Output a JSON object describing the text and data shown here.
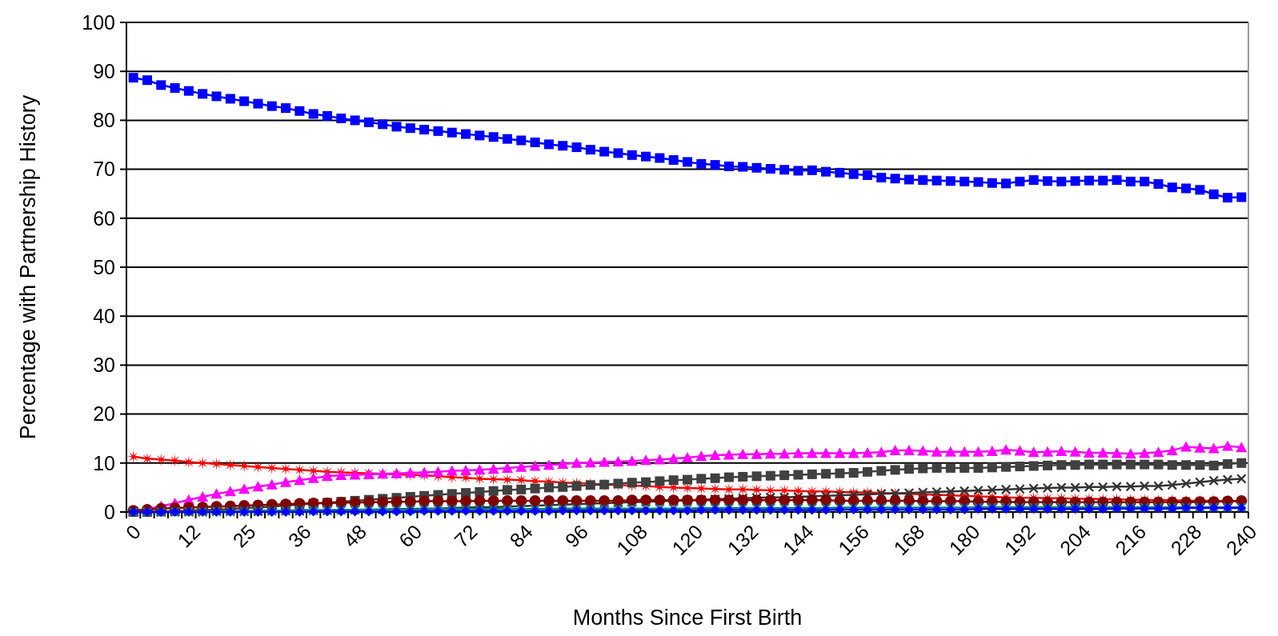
{
  "chart_data": {
    "type": "line",
    "xlabel": "Months Since First Birth",
    "ylabel": "Percentage with Partnership History",
    "categories": [
      "0",
      null,
      null,
      null,
      "12",
      null,
      null,
      null,
      "25",
      null,
      null,
      null,
      "36",
      null,
      null,
      null,
      "48",
      null,
      null,
      null,
      "60",
      null,
      null,
      null,
      "72",
      null,
      null,
      null,
      "84",
      null,
      null,
      null,
      "96",
      null,
      null,
      null,
      "108",
      null,
      null,
      null,
      "120",
      null,
      null,
      null,
      "132",
      null,
      null,
      null,
      "144",
      null,
      null,
      null,
      "156",
      null,
      null,
      null,
      "168",
      null,
      null,
      null,
      "180",
      null,
      null,
      null,
      "192",
      null,
      null,
      null,
      "204",
      null,
      null,
      null,
      "216",
      null,
      null,
      null,
      "228",
      null,
      null,
      null,
      "240"
    ],
    "ylim": [
      0,
      100
    ],
    "yticks": [
      0,
      10,
      20,
      30,
      40,
      50,
      60,
      70,
      80,
      90,
      100
    ],
    "grid": "y",
    "series": [
      {
        "color": "#0000ff",
        "marker": "square",
        "values": [
          88.7,
          88.2,
          87.2,
          86.6,
          86.0,
          85.4,
          84.9,
          84.4,
          83.9,
          83.4,
          82.9,
          82.5,
          81.9,
          81.3,
          80.9,
          80.4,
          80.0,
          79.6,
          79.2,
          78.7,
          78.4,
          78.1,
          77.8,
          77.5,
          77.2,
          76.9,
          76.6,
          76.2,
          75.9,
          75.5,
          75.1,
          74.8,
          74.5,
          74.0,
          73.6,
          73.3,
          72.9,
          72.6,
          72.3,
          71.9,
          71.5,
          71.1,
          70.9,
          70.6,
          70.5,
          70.3,
          70.1,
          69.9,
          69.7,
          69.8,
          69.5,
          69.3,
          69.0,
          68.8,
          68.3,
          68.1,
          67.9,
          67.8,
          67.7,
          67.6,
          67.5,
          67.4,
          67.2,
          67.1,
          67.5,
          67.8,
          67.6,
          67.5,
          67.6,
          67.7,
          67.7,
          67.8,
          67.5,
          67.5,
          67.0,
          66.3,
          66.1,
          65.8,
          64.9,
          64.2,
          64.3
        ]
      },
      {
        "color": "#ff0000",
        "marker": "star",
        "values": [
          11.3,
          10.9,
          10.7,
          10.5,
          10.2,
          10.0,
          9.8,
          9.6,
          9.4,
          9.2,
          9.0,
          8.8,
          8.6,
          8.4,
          8.2,
          8.1,
          8.0,
          7.9,
          7.8,
          7.7,
          7.6,
          7.5,
          7.3,
          7.1,
          7.0,
          6.8,
          6.7,
          6.6,
          6.5,
          6.3,
          6.2,
          6.0,
          5.9,
          5.8,
          5.6,
          5.5,
          5.4,
          5.3,
          5.1,
          5.0,
          4.9,
          4.8,
          4.7,
          4.6,
          4.6,
          4.5,
          4.4,
          4.4,
          4.3,
          4.2,
          4.2,
          4.1,
          4.0,
          4.0,
          3.9,
          3.8,
          3.7,
          3.6,
          3.5,
          3.4,
          3.3,
          3.2,
          3.1,
          3.0,
          2.9,
          2.9,
          2.8,
          2.8,
          2.7,
          2.7,
          2.6,
          2.6,
          2.5,
          2.5,
          2.4,
          2.4,
          2.3,
          2.3,
          2.3,
          2.2,
          2.2
        ]
      },
      {
        "color": "#ff00ff",
        "marker": "triangle",
        "values": [
          0.2,
          0.6,
          1.2,
          1.8,
          2.5,
          3.1,
          3.7,
          4.2,
          4.7,
          5.2,
          5.6,
          6.1,
          6.5,
          6.9,
          7.3,
          7.5,
          7.6,
          7.7,
          7.8,
          7.9,
          8.0,
          8.1,
          8.2,
          8.4,
          8.5,
          8.6,
          8.8,
          9.0,
          9.2,
          9.4,
          9.6,
          9.8,
          10.0,
          10.1,
          10.2,
          10.3,
          10.4,
          10.6,
          10.7,
          10.9,
          11.1,
          11.4,
          11.6,
          11.7,
          11.8,
          11.8,
          11.9,
          11.9,
          12.0,
          12.0,
          12.0,
          12.0,
          12.0,
          12.1,
          12.2,
          12.6,
          12.6,
          12.5,
          12.3,
          12.3,
          12.3,
          12.3,
          12.4,
          12.7,
          12.5,
          12.2,
          12.3,
          12.4,
          12.3,
          12.1,
          12.1,
          12.0,
          11.9,
          12.0,
          12.2,
          12.6,
          13.3,
          13.1,
          13.0,
          13.5,
          13.2
        ]
      },
      {
        "color": "#404040",
        "marker": "square",
        "values": [
          0.0,
          0.0,
          0.1,
          0.2,
          0.3,
          0.4,
          0.5,
          0.6,
          0.8,
          0.9,
          1.1,
          1.3,
          1.5,
          1.7,
          1.9,
          2.1,
          2.3,
          2.5,
          2.7,
          2.9,
          3.1,
          3.3,
          3.5,
          3.7,
          3.9,
          4.1,
          4.3,
          4.5,
          4.6,
          4.8,
          5.0,
          5.1,
          5.3,
          5.5,
          5.6,
          5.8,
          6.0,
          6.1,
          6.3,
          6.5,
          6.6,
          6.8,
          6.9,
          7.1,
          7.2,
          7.3,
          7.4,
          7.5,
          7.6,
          7.7,
          7.8,
          7.9,
          8.0,
          8.2,
          8.4,
          8.6,
          8.8,
          8.9,
          9.0,
          9.0,
          9.0,
          9.0,
          9.1,
          9.2,
          9.3,
          9.4,
          9.5,
          9.6,
          9.6,
          9.7,
          9.7,
          9.7,
          9.7,
          9.7,
          9.7,
          9.6,
          9.6,
          9.6,
          9.5,
          9.8,
          10.0
        ]
      },
      {
        "color": "#333333",
        "marker": "cross",
        "values": [
          0.0,
          0.0,
          0.0,
          0.0,
          0.0,
          0.0,
          0.1,
          0.1,
          0.1,
          0.1,
          0.2,
          0.2,
          0.2,
          0.3,
          0.3,
          0.4,
          0.4,
          0.5,
          0.5,
          0.6,
          0.6,
          0.7,
          0.7,
          0.8,
          0.9,
          1.0,
          1.0,
          1.1,
          1.2,
          1.3,
          1.4,
          1.5,
          1.6,
          1.7,
          1.8,
          1.9,
          2.0,
          2.1,
          2.2,
          2.3,
          2.4,
          2.5,
          2.6,
          2.7,
          2.8,
          2.9,
          3.0,
          3.0,
          3.1,
          3.2,
          3.3,
          3.4,
          3.5,
          3.6,
          3.7,
          3.8,
          3.9,
          4.0,
          4.1,
          4.2,
          4.3,
          4.4,
          4.5,
          4.6,
          4.7,
          4.8,
          4.9,
          5.0,
          5.0,
          5.1,
          5.1,
          5.2,
          5.2,
          5.3,
          5.3,
          5.5,
          5.8,
          6.1,
          6.4,
          6.6,
          6.8
        ]
      },
      {
        "color": "#800000",
        "marker": "circle",
        "values": [
          0.3,
          0.5,
          0.7,
          0.8,
          0.9,
          1.0,
          1.1,
          1.2,
          1.3,
          1.4,
          1.5,
          1.6,
          1.7,
          1.8,
          1.8,
          1.9,
          1.9,
          2.0,
          2.0,
          2.1,
          2.1,
          2.2,
          2.2,
          2.2,
          2.2,
          2.3,
          2.3,
          2.3,
          2.3,
          2.3,
          2.3,
          2.3,
          2.3,
          2.3,
          2.3,
          2.3,
          2.4,
          2.4,
          2.4,
          2.4,
          2.4,
          2.4,
          2.4,
          2.4,
          2.4,
          2.4,
          2.4,
          2.4,
          2.4,
          2.4,
          2.4,
          2.3,
          2.3,
          2.3,
          2.3,
          2.3,
          2.3,
          2.2,
          2.2,
          2.2,
          2.2,
          2.1,
          2.1,
          2.1,
          2.0,
          2.0,
          2.0,
          2.0,
          2.0,
          2.0,
          2.0,
          2.0,
          2.0,
          2.0,
          2.0,
          2.0,
          2.0,
          2.1,
          2.1,
          2.2,
          2.3
        ]
      },
      {
        "color": "#008080",
        "marker": "cross",
        "values": [
          0.0,
          0.0,
          0.0,
          0.1,
          0.1,
          0.1,
          0.2,
          0.2,
          0.2,
          0.3,
          0.3,
          0.3,
          0.4,
          0.4,
          0.4,
          0.4,
          0.5,
          0.5,
          0.5,
          0.5,
          0.5,
          0.6,
          0.6,
          0.6,
          0.6,
          0.6,
          0.6,
          0.6,
          0.6,
          0.6,
          0.6,
          0.7,
          0.7,
          0.7,
          0.7,
          0.7,
          0.7,
          0.7,
          0.7,
          0.7,
          0.7,
          0.8,
          0.8,
          0.8,
          0.8,
          0.8,
          0.8,
          0.8,
          0.8,
          0.8,
          0.8,
          0.9,
          0.9,
          0.9,
          0.9,
          0.9,
          0.9,
          0.9,
          0.9,
          0.9,
          0.9,
          1.0,
          1.0,
          1.0,
          1.0,
          1.0,
          1.0,
          1.0,
          1.0,
          1.0,
          1.0,
          1.0,
          1.0,
          1.0,
          1.0,
          1.0,
          1.0,
          1.0,
          1.0,
          1.0,
          1.0
        ]
      },
      {
        "color": "#0000ff",
        "marker": "diamond",
        "values": [
          0.0,
          0.0,
          0.0,
          0.0,
          0.0,
          0.0,
          0.0,
          0.0,
          0.0,
          0.0,
          0.0,
          0.0,
          0.0,
          0.1,
          0.1,
          0.1,
          0.1,
          0.1,
          0.1,
          0.1,
          0.1,
          0.2,
          0.2,
          0.2,
          0.2,
          0.2,
          0.2,
          0.2,
          0.2,
          0.2,
          0.2,
          0.3,
          0.3,
          0.3,
          0.3,
          0.3,
          0.3,
          0.3,
          0.3,
          0.3,
          0.3,
          0.4,
          0.4,
          0.4,
          0.4,
          0.4,
          0.4,
          0.4,
          0.4,
          0.4,
          0.4,
          0.5,
          0.5,
          0.5,
          0.5,
          0.5,
          0.5,
          0.5,
          0.5,
          0.5,
          0.5,
          0.6,
          0.6,
          0.6,
          0.6,
          0.6,
          0.6,
          0.6,
          0.6,
          0.6,
          0.6,
          0.7,
          0.7,
          0.7,
          0.7,
          0.7,
          0.8,
          0.8,
          0.8,
          0.8,
          0.8
        ]
      }
    ]
  }
}
